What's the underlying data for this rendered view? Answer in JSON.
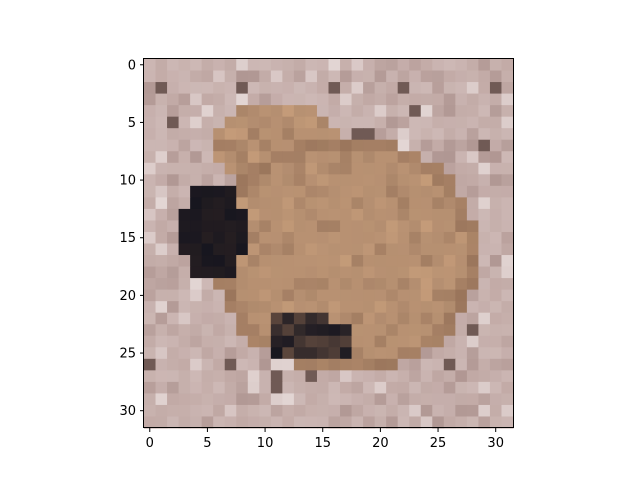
{
  "image": {
    "description_subject": "frog-icon",
    "grid_size": [
      32,
      32
    ],
    "x_ticks": [
      "0",
      "5",
      "10",
      "15",
      "20",
      "25",
      "30"
    ],
    "y_ticks": [
      "0",
      "5",
      "10",
      "15",
      "20",
      "25",
      "30"
    ],
    "x_tick_values": [
      0,
      5,
      10,
      15,
      20,
      25,
      30
    ],
    "y_tick_values": [
      0,
      5,
      10,
      15,
      20,
      25,
      30
    ],
    "colors": {
      "background_stone": "#c2aaa6",
      "stone_light": "#d6c4c2",
      "stone_dark": "#a48a86",
      "frog_body": "#b48e70",
      "frog_light": "#caa07c",
      "frog_dark": "#8e6a52",
      "shadow": "#17161f",
      "shadow_brown": "#3b2a24",
      "highlight": "#eee6e4"
    }
  }
}
